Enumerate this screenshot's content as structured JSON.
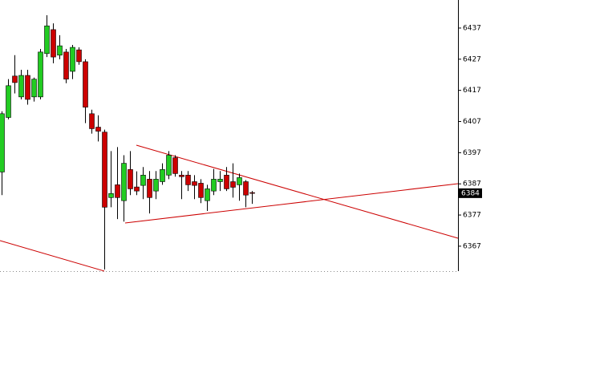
{
  "chart_data": {
    "type": "candlestick",
    "open": [
      6390.8,
      6408.3,
      6421.6,
      6414.9,
      6421.8,
      6414.9,
      6414.9,
      6428.8,
      6436.5,
      6428.3,
      6429.3,
      6423.1,
      6430.0,
      6426.2,
      6409.5,
      6405.2,
      6403.6,
      6382.6,
      6386.7,
      6381.6,
      6391.6,
      6386.0,
      6386.5,
      6388.5,
      6384.7,
      6387.7,
      6389.8,
      6395.4,
      6389.8,
      6389.8,
      6387.7,
      6387.2,
      6381.6,
      6384.7,
      6387.7,
      6389.8,
      6387.7,
      6386.7,
      6387.7,
      6384.2
    ],
    "high": [
      6410.3,
      6420.6,
      6428.3,
      6423.6,
      6423.6,
      6421.1,
      6430.3,
      6441.1,
      6438.5,
      6434.7,
      6430.3,
      6431.6,
      6430.8,
      6427.0,
      6410.8,
      6409.0,
      6404.4,
      6397.5,
      6398.8,
      6396.2,
      6397.5,
      6391.0,
      6392.4,
      6391.1,
      6391.1,
      6393.6,
      6397.5,
      6396.2,
      6391.1,
      6391.1,
      6389.8,
      6388.5,
      6386.7,
      6391.8,
      6391.1,
      6392.4,
      6393.6,
      6390.3,
      6388.2,
      6384.7
    ],
    "low": [
      6383.4,
      6407.7,
      6416.0,
      6414.1,
      6412.4,
      6413.4,
      6414.1,
      6427.7,
      6425.7,
      6427.0,
      6419.3,
      6420.6,
      6425.2,
      6406.5,
      6403.1,
      6400.6,
      6359.5,
      6379.5,
      6375.7,
      6374.9,
      6383.4,
      6383.4,
      6382.1,
      6377.5,
      6382.1,
      6386.7,
      6388.5,
      6389.3,
      6382.1,
      6384.7,
      6382.1,
      6380.8,
      6378.3,
      6383.4,
      6384.7,
      6384.7,
      6382.6,
      6381.6,
      6379.5,
      6380.6
    ],
    "close": [
      6409.5,
      6418.5,
      6419.5,
      6421.8,
      6414.1,
      6420.6,
      6429.3,
      6437.7,
      6427.7,
      6431.3,
      6420.6,
      6430.8,
      6426.2,
      6411.6,
      6404.7,
      6403.9,
      6379.5,
      6383.9,
      6382.6,
      6393.6,
      6385.4,
      6384.7,
      6389.8,
      6382.6,
      6388.5,
      6391.6,
      6396.2,
      6390.3,
      6389.3,
      6386.7,
      6386.5,
      6382.6,
      6385.4,
      6388.5,
      6388.5,
      6385.4,
      6385.9,
      6389.0,
      6383.4,
      6384.0
    ],
    "up_color": "#22cc22",
    "down_color": "#cc0000",
    "ylim": [
      6359,
      6446
    ],
    "yticks": [
      6367,
      6377,
      6387,
      6397,
      6407,
      6417,
      6427,
      6437
    ],
    "last_price": 6384
  }
}
